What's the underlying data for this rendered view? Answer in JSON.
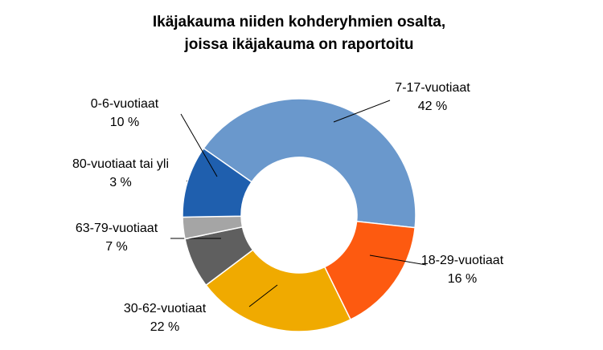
{
  "chart_data": {
    "type": "donut",
    "title": [
      "Ikäjakauma niiden kohderyhmien osalta,",
      "joissa ikäjakauma on raportoitu"
    ],
    "categories": [
      "7-17-vuotiaat",
      "18-29-vuotiaat",
      "30-62-vuotiaat",
      "63-79-vuotiaat",
      "80-vuotiaat tai yli",
      "0-6-vuotiaat"
    ],
    "values": [
      42,
      16,
      22,
      7,
      3,
      10
    ],
    "value_labels": [
      "42 %",
      "16 %",
      "22 %",
      "7 %",
      "3 %",
      "10 %"
    ],
    "colors": [
      "#6a98cc",
      "#fd5a10",
      "#f0aa00",
      "#5f5f5f",
      "#a5a5a5",
      "#1f5fae"
    ]
  }
}
